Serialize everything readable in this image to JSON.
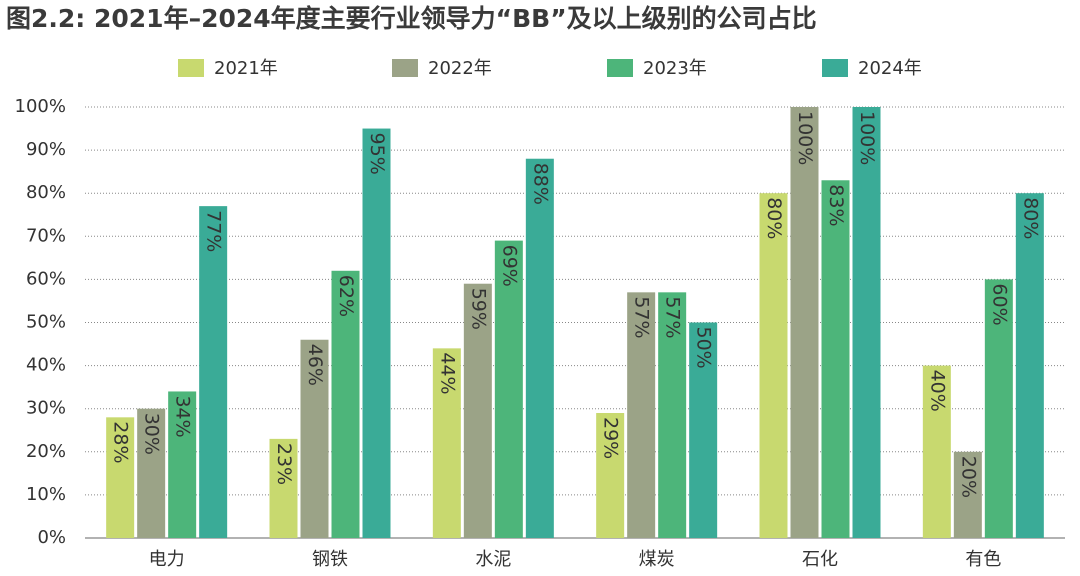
{
  "chart_data": {
    "type": "bar",
    "title": "图2.2: 2021年–2024年度主要行业领导力“BB”及以上级别的公司占比",
    "categories": [
      "电力",
      "钢铁",
      "水泥",
      "煤炭",
      "石化",
      "有色"
    ],
    "series": [
      {
        "name": "2021年",
        "color": "#c8d96f",
        "values": [
          28,
          23,
          44,
          29,
          80,
          40
        ],
        "value_labels": [
          "28%",
          "23%",
          "44%",
          "29%",
          "80%",
          "40%"
        ]
      },
      {
        "name": "2022年",
        "color": "#9ba387",
        "values": [
          30,
          46,
          59,
          57,
          100,
          20
        ],
        "value_labels": [
          "30%",
          "46%",
          "59%",
          "57%",
          "100%",
          "20%"
        ]
      },
      {
        "name": "2023年",
        "color": "#4db57a",
        "values": [
          34,
          62,
          69,
          57,
          83,
          60
        ],
        "value_labels": [
          "34%",
          "62%",
          "69%",
          "57%",
          "83%",
          "60%"
        ]
      },
      {
        "name": "2024年",
        "color": "#3aab97",
        "values": [
          77,
          95,
          88,
          50,
          100,
          80
        ],
        "value_labels": [
          "77%",
          "95%",
          "88%",
          "50%",
          "100%",
          "80%"
        ]
      }
    ],
    "ylim": [
      0,
      100
    ],
    "yticks": [
      {
        "value": 0,
        "label": "0%"
      },
      {
        "value": 10,
        "label": "10%"
      },
      {
        "value": 20,
        "label": "20%"
      },
      {
        "value": 30,
        "label": "30%"
      },
      {
        "value": 40,
        "label": "40%"
      },
      {
        "value": 50,
        "label": "50%"
      },
      {
        "value": 60,
        "label": "60%"
      },
      {
        "value": 70,
        "label": "70%"
      },
      {
        "value": 80,
        "label": "80%"
      },
      {
        "value": 90,
        "label": "90%"
      },
      {
        "value": 100,
        "label": "100%"
      }
    ],
    "grid": true
  }
}
